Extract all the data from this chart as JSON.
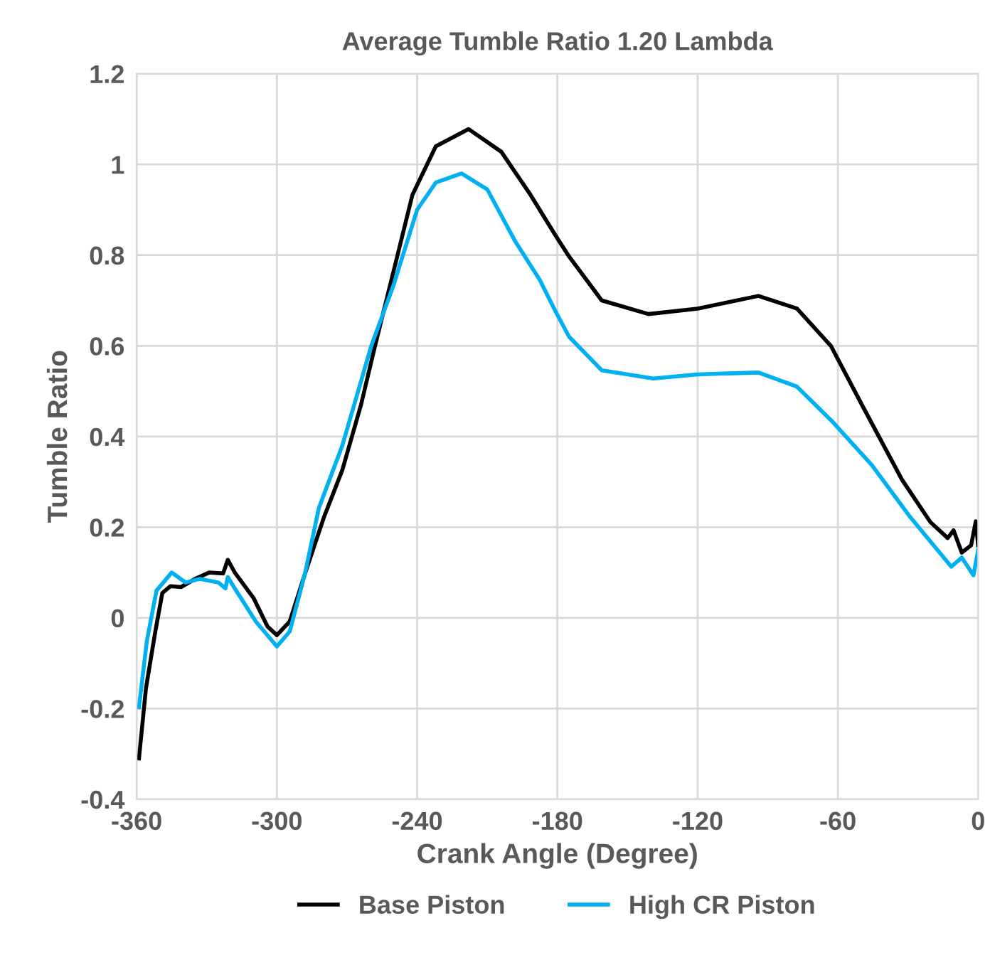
{
  "chart_data": {
    "type": "line",
    "title": "Average Tumble Ratio 1.20 Lambda",
    "xlabel": "Crank Angle (Degree)",
    "ylabel": "Tumble Ratio",
    "xlim": [
      -360,
      0
    ],
    "xticks": [
      -360,
      -300,
      -240,
      -180,
      -120,
      -60,
      0
    ],
    "ylim": [
      -0.4,
      1.2
    ],
    "yticks": [
      -0.4,
      -0.2,
      0,
      0.2,
      0.4,
      0.6,
      0.8,
      1,
      1.2
    ],
    "grid": true,
    "legend": "bottom",
    "marker": "none",
    "line_style": "solid",
    "series": [
      {
        "name": "Base Piston",
        "color": "#000000",
        "x": [
          -359,
          -356,
          -352,
          -349,
          -345.5,
          -341,
          -335,
          -329,
          -323,
          -321,
          -318,
          -310,
          -304,
          -300,
          -294.5,
          -288,
          -280,
          -272,
          -264,
          -258,
          -250,
          -242,
          -232,
          -218,
          -204,
          -191.5,
          -181,
          -175,
          -161,
          -141,
          -120,
          -94,
          -77.5,
          -63,
          -49,
          -32.6,
          -20.4,
          -13,
          -10.5,
          -7,
          -3,
          -1,
          0
        ],
        "values": [
          -0.31,
          -0.155,
          -0.03,
          0.055,
          0.07,
          0.068,
          0.086,
          0.1,
          0.098,
          0.128,
          0.1,
          0.044,
          -0.019,
          -0.038,
          -0.008,
          0.097,
          0.22,
          0.326,
          0.47,
          0.6,
          0.766,
          0.933,
          1.04,
          1.078,
          1.028,
          0.933,
          0.845,
          0.797,
          0.7,
          0.67,
          0.682,
          0.71,
          0.682,
          0.6,
          0.463,
          0.305,
          0.211,
          0.176,
          0.193,
          0.144,
          0.16,
          0.213,
          0.16
        ]
      },
      {
        "name": "High CR Piston",
        "color": "#00b0f0",
        "x": [
          -359,
          -355.6,
          -351.5,
          -345,
          -339,
          -333,
          -325,
          -322,
          -321,
          -318,
          -309,
          -300,
          -294.5,
          -288,
          -282,
          -272,
          -259.6,
          -250,
          -240,
          -232,
          -221,
          -210,
          -198,
          -187.5,
          -181,
          -175,
          -161,
          -139,
          -120,
          -94,
          -77.5,
          -62,
          -45.5,
          -29,
          -11.5,
          -7,
          -2,
          0
        ],
        "values": [
          -0.197,
          -0.05,
          0.06,
          0.1,
          0.078,
          0.086,
          0.078,
          0.065,
          0.09,
          0.065,
          -0.008,
          -0.063,
          -0.03,
          0.097,
          0.243,
          0.38,
          0.6,
          0.735,
          0.9,
          0.96,
          0.98,
          0.945,
          0.83,
          0.745,
          0.678,
          0.62,
          0.546,
          0.528,
          0.537,
          0.541,
          0.51,
          0.431,
          0.337,
          0.222,
          0.113,
          0.133,
          0.094,
          0.149
        ]
      }
    ]
  }
}
